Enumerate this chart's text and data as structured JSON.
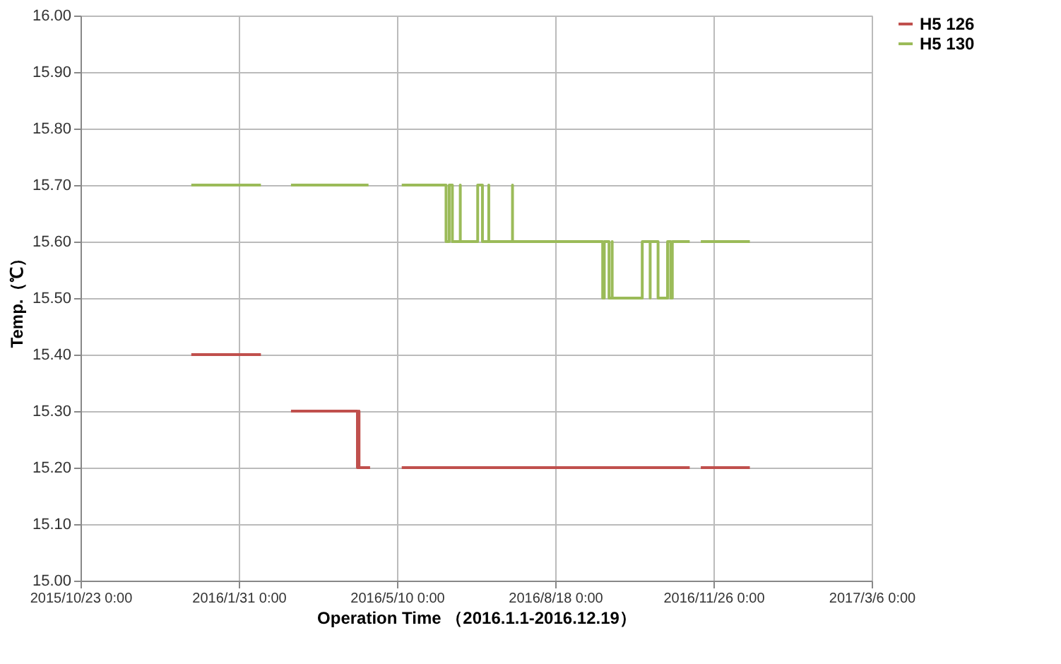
{
  "chart_data": {
    "type": "line",
    "xlabel": "Operation Time （2016.1.1-2016.12.19）",
    "ylabel": "Temp.（℃）",
    "series": [
      {
        "name": "H5 126",
        "color": "#c0504d",
        "x": [
          "2016-01-01",
          "2016-02-14",
          "2016-02-24",
          "2016-03-04",
          "2016-04-15",
          "2016-04-15",
          "2016-04-16",
          "2016-04-16",
          "2016-04-16",
          "2016-04-23",
          "2016-05-02",
          "2016-05-13",
          "2016-11-11",
          "2016-11-14",
          "2016-11-18",
          "2016-12-19"
        ],
        "values": [
          15.4,
          15.4,
          null,
          15.3,
          15.3,
          15.2,
          15.2,
          15.3,
          15.2,
          15.2,
          null,
          15.2,
          15.2,
          null,
          15.2,
          15.2
        ]
      },
      {
        "name": "H5 130",
        "color": "#9bbb59",
        "x": [
          "2016-01-01",
          "2016-02-14",
          "2016-02-24",
          "2016-03-04",
          "2016-04-22",
          "2016-05-02",
          "2016-05-13",
          "2016-06-10",
          "2016-06-10",
          "2016-06-12",
          "2016-06-12",
          "2016-06-14",
          "2016-06-14",
          "2016-06-19",
          "2016-06-19",
          "2016-06-19",
          "2016-06-30",
          "2016-06-30",
          "2016-07-03",
          "2016-07-03",
          "2016-07-07",
          "2016-07-07",
          "2016-07-07",
          "2016-07-22",
          "2016-07-22",
          "2016-07-22",
          "2016-09-17",
          "2016-09-17",
          "2016-09-18",
          "2016-09-18",
          "2016-09-21",
          "2016-09-21",
          "2016-09-23",
          "2016-09-23",
          "2016-09-23",
          "2016-10-12",
          "2016-10-12",
          "2016-10-17",
          "2016-10-17",
          "2016-10-17",
          "2016-10-22",
          "2016-10-22",
          "2016-10-28",
          "2016-10-28",
          "2016-10-30",
          "2016-10-30",
          "2016-10-31",
          "2016-10-31",
          "2016-11-11",
          "2016-11-14",
          "2016-11-18",
          "2016-12-19"
        ],
        "values": [
          15.7,
          15.7,
          null,
          15.7,
          15.7,
          null,
          15.7,
          15.7,
          15.6,
          15.6,
          15.7,
          15.7,
          15.6,
          15.6,
          15.7,
          15.6,
          15.6,
          15.7,
          15.7,
          15.6,
          15.6,
          15.7,
          15.6,
          15.6,
          15.7,
          15.6,
          15.6,
          15.5,
          15.5,
          15.6,
          15.6,
          15.5,
          15.5,
          15.6,
          15.5,
          15.5,
          15.6,
          15.6,
          15.5,
          15.6,
          15.6,
          15.5,
          15.5,
          15.6,
          15.6,
          15.5,
          15.5,
          15.6,
          15.6,
          null,
          15.6,
          15.6
        ]
      }
    ],
    "xlim": [
      "2015-10-23",
      "2017-03-06"
    ],
    "xticks": [
      {
        "value": "2015-10-23",
        "label": "2015/10/23 0:00"
      },
      {
        "value": "2016-01-31",
        "label": "2016/1/31 0:00"
      },
      {
        "value": "2016-05-10",
        "label": "2016/5/10 0:00"
      },
      {
        "value": "2016-08-18",
        "label": "2016/8/18 0:00"
      },
      {
        "value": "2016-11-26",
        "label": "2016/11/26 0:00"
      },
      {
        "value": "2017-03-06",
        "label": "2017/3/6 0:00"
      }
    ],
    "ylim": [
      15.0,
      16.0
    ],
    "yticks": [
      {
        "value": 15.0,
        "label": "15.00"
      },
      {
        "value": 15.1,
        "label": "15.10"
      },
      {
        "value": 15.2,
        "label": "15.20"
      },
      {
        "value": 15.3,
        "label": "15.30"
      },
      {
        "value": 15.4,
        "label": "15.40"
      },
      {
        "value": 15.5,
        "label": "15.50"
      },
      {
        "value": 15.6,
        "label": "15.60"
      },
      {
        "value": 15.7,
        "label": "15.70"
      },
      {
        "value": 15.8,
        "label": "15.80"
      },
      {
        "value": 15.9,
        "label": "15.90"
      },
      {
        "value": 16.0,
        "label": "16.00"
      }
    ],
    "grid": true,
    "legend": "right",
    "marker": "none",
    "line_style": "solid"
  }
}
